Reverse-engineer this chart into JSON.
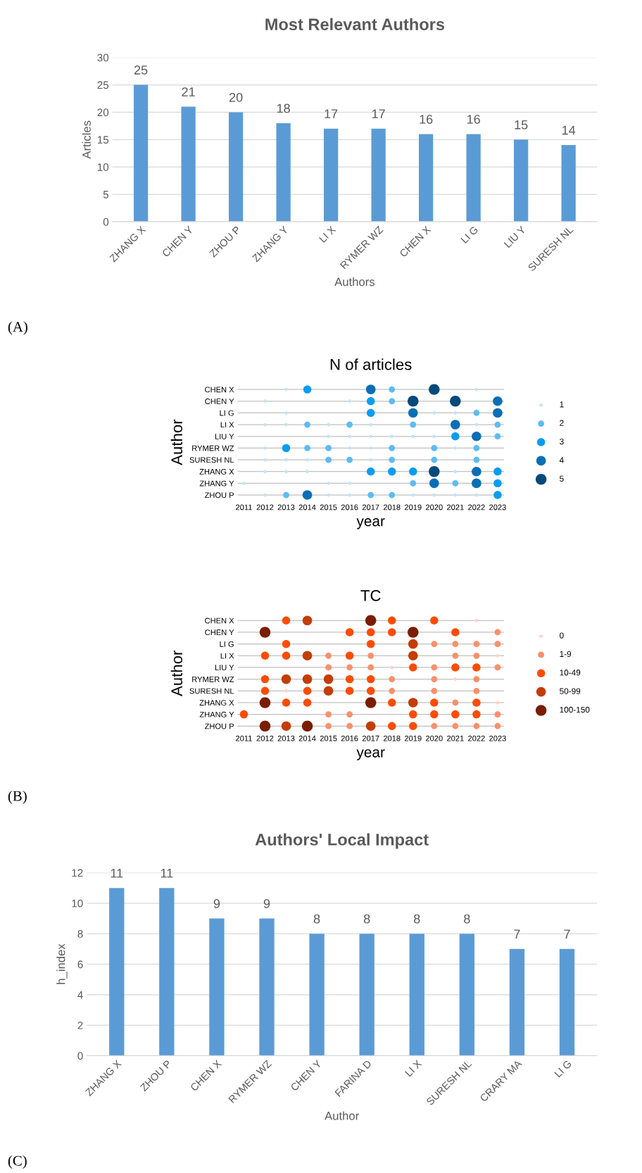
{
  "chart_data": [
    {
      "type": "bar",
      "title": "Most Relevant Authors",
      "xlabel": "Authors",
      "ylabel": "Articles",
      "categories": [
        "ZHANG X",
        "CHEN Y",
        "ZHOU P",
        "ZHANG Y",
        "LI X",
        "RYMER WZ",
        "CHEN X",
        "LI G",
        "LIU Y",
        "SURESH NL"
      ],
      "values": [
        25,
        21,
        20,
        18,
        17,
        17,
        16,
        16,
        15,
        14
      ],
      "color": "#5b9bd5",
      "ylim": [
        0,
        30
      ],
      "yticks": [
        0,
        5,
        10,
        15,
        20,
        25,
        30
      ],
      "grid": "y",
      "data_labels": true,
      "annotations": [
        "(A)"
      ]
    },
    {
      "type": "scatter",
      "orientation": "horizontal",
      "title": "N of articles",
      "xlabel": "year",
      "ylabel": "Author",
      "marker": "circle",
      "grid": "y",
      "legend": "right",
      "xlim": [
        2010.7,
        2023.3
      ],
      "xticks": [
        2011,
        2012,
        2013,
        2014,
        2015,
        2016,
        2017,
        2018,
        2019,
        2020,
        2021,
        2022,
        2023
      ],
      "categories": [
        "CHEN X",
        "CHEN Y",
        "LI G",
        "LI X",
        "LIU Y",
        "RYMER WZ",
        "SURESH NL",
        "ZHANG X",
        "ZHANG Y",
        "ZHOU P"
      ],
      "series": [
        {
          "name": "1",
          "color": "#c4e4f7",
          "values": [
            2013,
            2022,
            2012,
            2016,
            2013,
            2020,
            2021,
            2012,
            2013,
            2015,
            2017,
            2022,
            2015,
            2016,
            2017,
            2018,
            2019,
            2020,
            2012,
            2016,
            2017,
            2021,
            2012,
            2013,
            2014,
            2017,
            2012,
            2013,
            2014,
            2021,
            2011,
            2015,
            2016,
            2012,
            2015,
            2016,
            2019,
            2020,
            2021,
            2022
          ],
          "x": [
            "CHEN X",
            "CHEN X",
            "CHEN Y",
            "CHEN Y",
            "LI G",
            "LI G",
            "LI G",
            "LI X",
            "LI X",
            "LI X",
            "LI X",
            "LI X",
            "LIU Y",
            "LIU Y",
            "LIU Y",
            "LIU Y",
            "LIU Y",
            "LIU Y",
            "RYMER WZ",
            "RYMER WZ",
            "RYMER WZ",
            "RYMER WZ",
            "SURESH NL",
            "SURESH NL",
            "SURESH NL",
            "SURESH NL",
            "ZHANG X",
            "ZHANG X",
            "ZHANG X",
            "ZHANG X",
            "ZHANG Y",
            "ZHANG Y",
            "ZHANG Y",
            "ZHOU P",
            "ZHOU P",
            "ZHOU P",
            "ZHOU P",
            "ZHOU P",
            "ZHOU P",
            "ZHOU P"
          ]
        },
        {
          "name": "2",
          "color": "#5cbcf3",
          "values": [
            2018,
            2018,
            2022,
            2014,
            2016,
            2019,
            2023,
            2023,
            2014,
            2015,
            2018,
            2020,
            2022,
            2015,
            2016,
            2018,
            2020,
            2022,
            2019,
            2021,
            2013,
            2017,
            2018
          ],
          "x": [
            "CHEN X",
            "CHEN Y",
            "LI G",
            "LI X",
            "LI X",
            "LI X",
            "LI X",
            "LIU Y",
            "RYMER WZ",
            "RYMER WZ",
            "RYMER WZ",
            "RYMER WZ",
            "RYMER WZ",
            "SURESH NL",
            "SURESH NL",
            "SURESH NL",
            "SURESH NL",
            "SURESH NL",
            "ZHANG Y",
            "ZHANG Y",
            "ZHOU P",
            "ZHOU P",
            "ZHOU P"
          ]
        },
        {
          "name": "3",
          "color": "#0a9cf2",
          "values": [
            2014,
            2017,
            2017,
            2021,
            2013,
            2017,
            2018,
            2019,
            2023,
            2023,
            2023
          ],
          "x": [
            "CHEN X",
            "CHEN Y",
            "LI G",
            "LIU Y",
            "RYMER WZ",
            "ZHANG X",
            "ZHANG X",
            "ZHANG X",
            "ZHANG X",
            "ZHANG Y",
            "ZHOU P"
          ]
        },
        {
          "name": "4",
          "color": "#0b6eb6",
          "values": [
            2017,
            2023,
            2019,
            2023,
            2021,
            2022,
            2022,
            2020,
            2022,
            2014
          ],
          "x": [
            "CHEN X",
            "CHEN Y",
            "LI G",
            "LI G",
            "LI X",
            "LIU Y",
            "ZHANG X",
            "ZHANG Y",
            "ZHANG Y",
            "ZHOU P"
          ]
        },
        {
          "name": "5",
          "color": "#07497a",
          "values": [
            2020,
            2019,
            2021,
            2020
          ],
          "x": [
            "CHEN X",
            "CHEN Y",
            "CHEN Y",
            "ZHANG X"
          ]
        }
      ]
    },
    {
      "type": "scatter",
      "orientation": "horizontal",
      "title": "TC",
      "xlabel": "year",
      "ylabel": "Author",
      "marker": "circle",
      "grid": "y",
      "legend": "right",
      "xlim": [
        2010.7,
        2023.3
      ],
      "xticks": [
        2011,
        2012,
        2013,
        2014,
        2015,
        2016,
        2017,
        2018,
        2019,
        2020,
        2021,
        2022,
        2023
      ],
      "categories": [
        "CHEN X",
        "CHEN Y",
        "LI G",
        "LI X",
        "LIU Y",
        "RYMER WZ",
        "SURESH NL",
        "ZHANG X",
        "ZHANG Y",
        "ZHOU P"
      ],
      "series": [
        {
          "name": "0",
          "color": "#fdd3c4",
          "values": [
            2022,
            2023,
            2018,
            2021,
            2013,
            2023
          ],
          "x": [
            "CHEN X",
            "LI X",
            "LIU Y",
            "RYMER WZ",
            "SURESH NL",
            "ZHANG X"
          ]
        },
        {
          "name": "1-9",
          "color": "#f9906c",
          "values": [
            2023,
            2020,
            2021,
            2022,
            2023,
            2015,
            2017,
            2021,
            2022,
            2015,
            2016,
            2017,
            2020,
            2023,
            2018,
            2020,
            2022,
            2018,
            2020,
            2022,
            2021,
            2015,
            2016,
            2023,
            2015,
            2016,
            2020,
            2021,
            2022,
            2023
          ],
          "x": [
            "CHEN Y",
            "LI G",
            "LI G",
            "LI G",
            "LI G",
            "LI X",
            "LI X",
            "LI X",
            "LI X",
            "LIU Y",
            "LIU Y",
            "LIU Y",
            "LIU Y",
            "LIU Y",
            "RYMER WZ",
            "RYMER WZ",
            "RYMER WZ",
            "SURESH NL",
            "SURESH NL",
            "SURESH NL",
            "ZHANG X",
            "ZHANG Y",
            "ZHANG Y",
            "ZHANG Y",
            "ZHOU P",
            "ZHOU P",
            "ZHOU P",
            "ZHOU P",
            "ZHOU P",
            "ZHOU P"
          ]
        },
        {
          "name": "10-49",
          "color": "#fc4c06",
          "values": [
            2013,
            2018,
            2020,
            2016,
            2017,
            2018,
            2021,
            2013,
            2017,
            2012,
            2013,
            2016,
            2019,
            2021,
            2022,
            2012,
            2016,
            2017,
            2012,
            2014,
            2016,
            2017,
            2013,
            2014,
            2018,
            2020,
            2022,
            2011,
            2019,
            2020,
            2021,
            2022,
            2018,
            2019
          ],
          "x": [
            "CHEN X",
            "CHEN X",
            "CHEN X",
            "CHEN Y",
            "CHEN Y",
            "CHEN Y",
            "CHEN Y",
            "LI G",
            "LI G",
            "LI X",
            "LI X",
            "LI X",
            "LIU Y",
            "LIU Y",
            "LIU Y",
            "RYMER WZ",
            "RYMER WZ",
            "RYMER WZ",
            "SURESH NL",
            "SURESH NL",
            "SURESH NL",
            "SURESH NL",
            "ZHANG X",
            "ZHANG X",
            "ZHANG X",
            "ZHANG X",
            "ZHANG X",
            "ZHANG Y",
            "ZHANG Y",
            "ZHANG Y",
            "ZHANG Y",
            "ZHANG Y",
            "ZHOU P",
            "ZHOU P"
          ]
        },
        {
          "name": "50-99",
          "color": "#c33d06",
          "values": [
            2014,
            2019,
            2014,
            2019,
            2013,
            2014,
            2015,
            2015,
            2019,
            2013,
            2017
          ],
          "x": [
            "CHEN X",
            "LI G",
            "LI X",
            "LI X",
            "RYMER WZ",
            "RYMER WZ",
            "RYMER WZ",
            "SURESH NL",
            "ZHANG X",
            "ZHOU P",
            "ZHOU P"
          ]
        },
        {
          "name": "100-150",
          "color": "#7b1d02",
          "values": [
            2017,
            2012,
            2019,
            2012,
            2017,
            2012,
            2014
          ],
          "x": [
            "CHEN X",
            "CHEN Y",
            "CHEN Y",
            "ZHANG X",
            "ZHANG X",
            "ZHOU P",
            "ZHOU P"
          ]
        }
      ],
      "annotations": [
        "(B)"
      ]
    },
    {
      "type": "bar",
      "title": "Authors' Local Impact",
      "xlabel": "Author",
      "ylabel": "h_index",
      "categories": [
        "ZHANG X",
        "ZHOU P",
        "CHEN X",
        "RYMER WZ",
        "CHEN Y",
        "FARINA D",
        "LI X",
        "SURESH NL",
        "CRARY MA",
        "LI G"
      ],
      "values": [
        11,
        11,
        9,
        9,
        8,
        8,
        8,
        8,
        7,
        7
      ],
      "color": "#5b9bd5",
      "ylim": [
        0,
        12
      ],
      "yticks": [
        0,
        2,
        4,
        6,
        8,
        10,
        12
      ],
      "grid": "y",
      "data_labels": true,
      "annotations": [
        "(C)"
      ]
    }
  ]
}
